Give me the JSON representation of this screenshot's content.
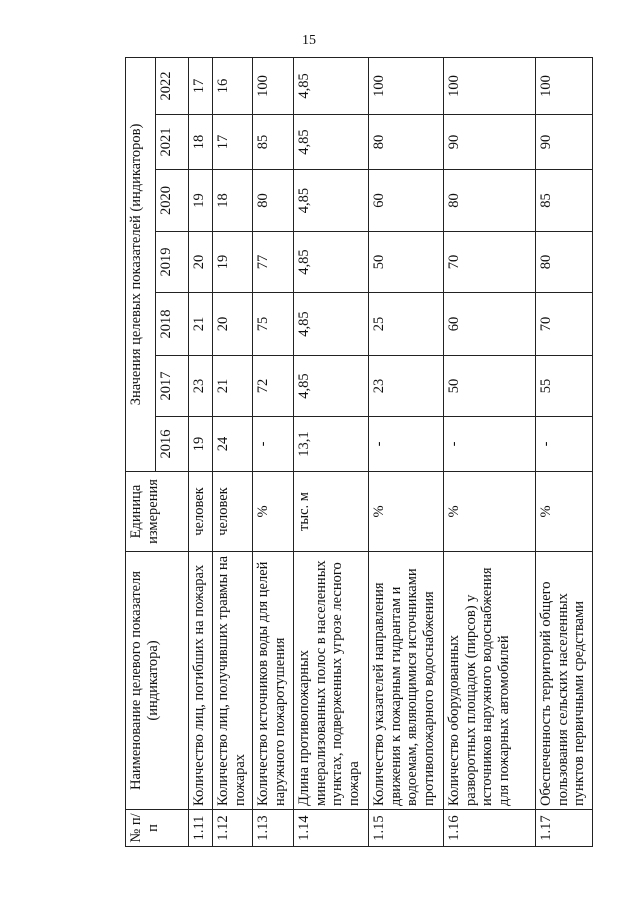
{
  "page_number": "15",
  "table": {
    "headers": {
      "num": "№ п/п",
      "name": "Наименование целевого показателя (индикатора)",
      "unit": "Единица измерения",
      "values_group": "Значения целевых показателей (индикаторов)",
      "years": [
        "2016",
        "2017",
        "2018",
        "2019",
        "2020",
        "2021",
        "2022"
      ]
    },
    "rows": [
      {
        "num": "1.11",
        "name": "Количество лиц, погибших на пожарах",
        "unit": "человек",
        "values": [
          "19",
          "23",
          "21",
          "20",
          "19",
          "18",
          "17"
        ]
      },
      {
        "num": "1.12",
        "name": "Количество лиц, получивших травмы на пожарах",
        "unit": "человек",
        "values": [
          "24",
          "21",
          "20",
          "19",
          "18",
          "17",
          "16"
        ]
      },
      {
        "num": "1.13",
        "name": "Количество источников воды для целей наружного пожаротушения",
        "unit": "%",
        "values": [
          "-",
          "72",
          "75",
          "77",
          "80",
          "85",
          "100"
        ]
      },
      {
        "num": "1.14",
        "name": "Длина противопожарных минерализованных полос в населенных пунктах, подверженных угрозе лесного пожара",
        "unit": "тыс. м",
        "values": [
          "13,1",
          "4,85",
          "4,85",
          "4,85",
          "4,85",
          "4,85",
          "4,85"
        ]
      },
      {
        "num": "1.15",
        "name": "Количество указателей направления движения к пожарным гидрантам и водоемам, являющимися источниками противопожарного водоснабжения",
        "unit": "%",
        "values": [
          "-",
          "23",
          "25",
          "50",
          "60",
          "80",
          "100"
        ]
      },
      {
        "num": "1.16",
        "name": "Количество оборудованных разворотных площадок (пирсов) у источников наружного водоснабжения для пожарных автомобилей",
        "unit": "%",
        "values": [
          "-",
          "50",
          "60",
          "70",
          "80",
          "90",
          "100"
        ]
      },
      {
        "num": "1.17",
        "name": "Обеспеченность территорий общего пользования сельских населенных пунктов первичными средствами",
        "unit": "%",
        "values": [
          "-",
          "55",
          "70",
          "80",
          "85",
          "90",
          "100"
        ]
      }
    ]
  }
}
